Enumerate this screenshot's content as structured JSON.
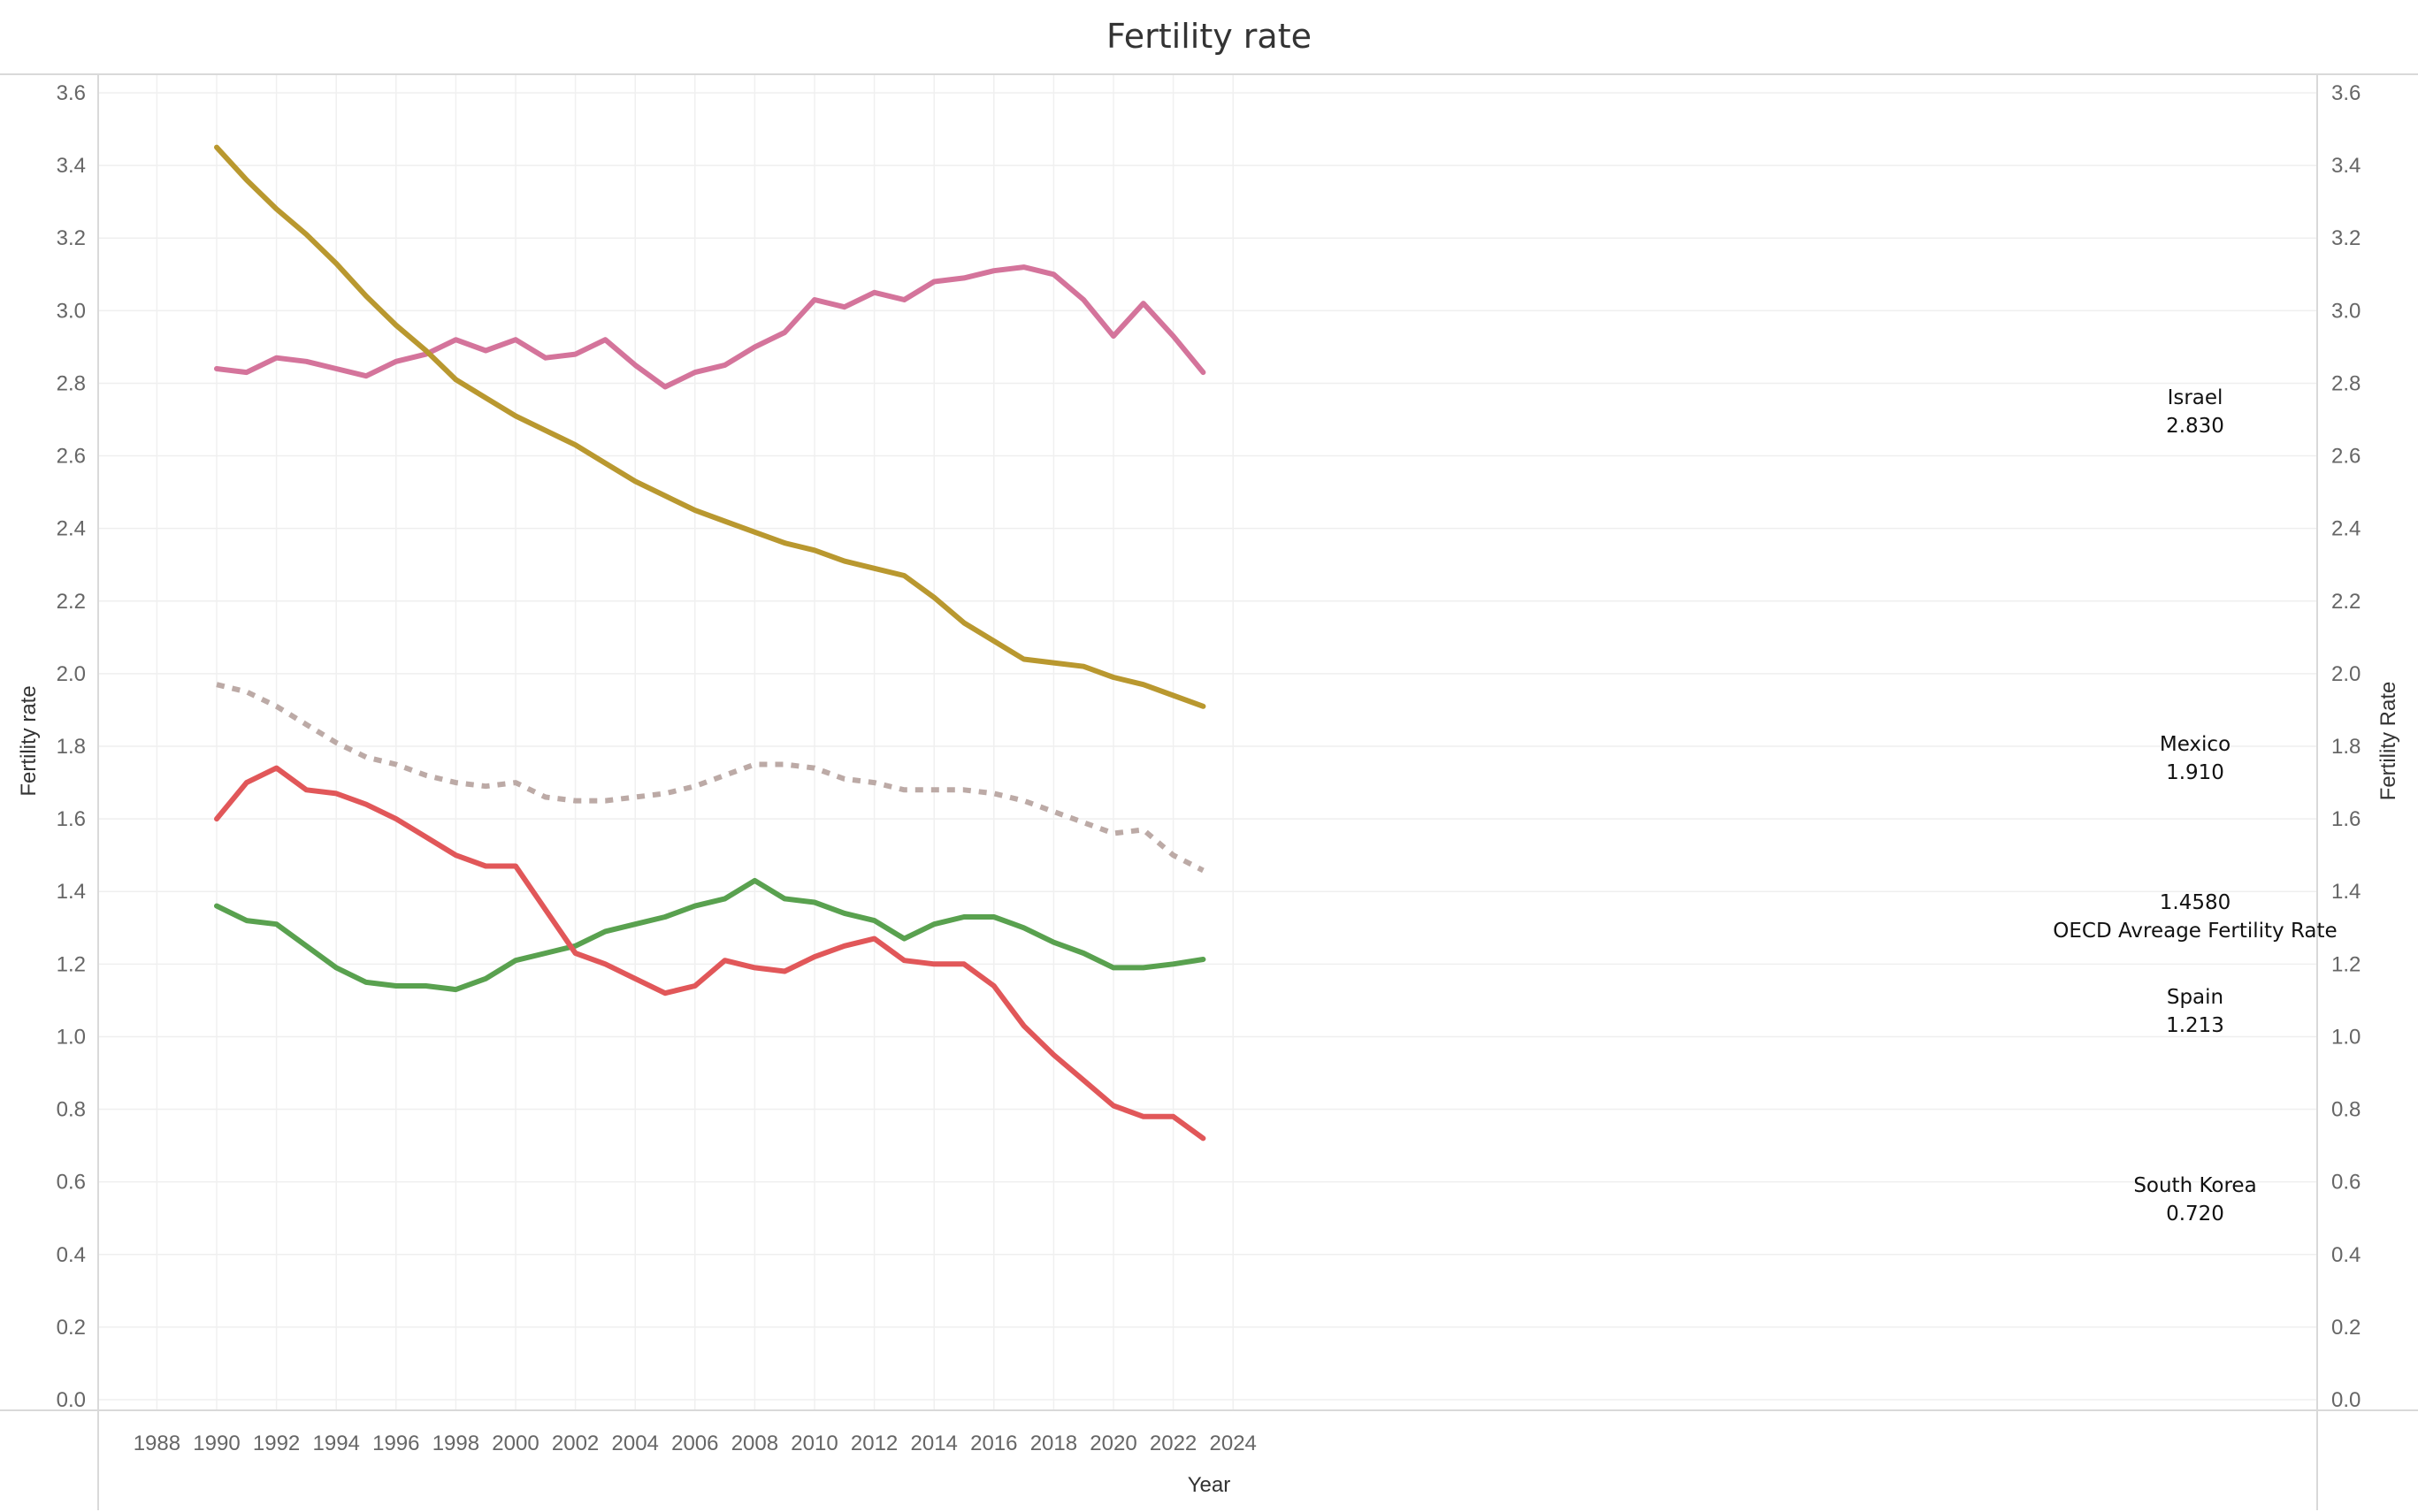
{
  "chart_data": {
    "type": "line",
    "title": "Fertility rate",
    "xlabel": "Year",
    "ylabel": "Fertility rate",
    "ylabel_right": "Fertility Rate",
    "xlim": [
      1987,
      2025
    ],
    "ylim": [
      0,
      3.65
    ],
    "x_ticks": [
      1988,
      1990,
      1992,
      1994,
      1996,
      1998,
      2000,
      2002,
      2004,
      2006,
      2008,
      2010,
      2012,
      2014,
      2016,
      2018,
      2020,
      2022,
      2024
    ],
    "y_ticks": [
      0.0,
      0.2,
      0.4,
      0.6,
      0.8,
      1.0,
      1.2,
      1.4,
      1.6,
      1.8,
      2.0,
      2.2,
      2.4,
      2.6,
      2.8,
      3.0,
      3.2,
      3.4,
      3.6
    ],
    "grid": true,
    "x": [
      1990,
      1991,
      1992,
      1993,
      1994,
      1995,
      1996,
      1997,
      1998,
      1999,
      2000,
      2001,
      2002,
      2003,
      2004,
      2005,
      2006,
      2007,
      2008,
      2009,
      2010,
      2011,
      2012,
      2013,
      2014,
      2015,
      2016,
      2017,
      2018,
      2019,
      2020,
      2021,
      2022,
      2023
    ],
    "series": [
      {
        "name": "Israel",
        "color": "#d4749b",
        "dashed": false,
        "values": [
          2.84,
          2.83,
          2.87,
          2.86,
          2.84,
          2.82,
          2.86,
          2.88,
          2.92,
          2.89,
          2.92,
          2.87,
          2.88,
          2.92,
          2.85,
          2.79,
          2.83,
          2.85,
          2.9,
          2.94,
          3.03,
          3.01,
          3.05,
          3.03,
          3.08,
          3.09,
          3.11,
          3.12,
          3.1,
          3.03,
          2.93,
          3.02,
          2.93,
          2.83
        ],
        "end_label_name": "Israel",
        "end_label_value": "2.830"
      },
      {
        "name": "Mexico",
        "color": "#b9982f",
        "dashed": false,
        "values": [
          3.45,
          3.36,
          3.28,
          3.21,
          3.13,
          3.04,
          2.96,
          2.89,
          2.81,
          2.76,
          2.71,
          2.67,
          2.63,
          2.58,
          2.53,
          2.49,
          2.45,
          2.42,
          2.39,
          2.36,
          2.34,
          2.31,
          2.29,
          2.27,
          2.21,
          2.14,
          2.09,
          2.04,
          2.03,
          2.02,
          1.99,
          1.97,
          1.94,
          1.91
        ],
        "end_label_name": "Mexico",
        "end_label_value": "1.910"
      },
      {
        "name": "OECD Avreage Fertility Rate",
        "color": "#bcaaa6",
        "dashed": true,
        "values": [
          1.97,
          1.95,
          1.91,
          1.86,
          1.81,
          1.77,
          1.75,
          1.72,
          1.7,
          1.69,
          1.7,
          1.66,
          1.65,
          1.65,
          1.66,
          1.67,
          1.69,
          1.72,
          1.75,
          1.75,
          1.74,
          1.71,
          1.7,
          1.68,
          1.68,
          1.68,
          1.67,
          1.65,
          1.62,
          1.59,
          1.56,
          1.57,
          1.5,
          1.458
        ],
        "end_label_name": "OECD Avreage Fertility Rate",
        "end_label_value": "1.4580"
      },
      {
        "name": "Spain",
        "color": "#59a14f",
        "dashed": false,
        "values": [
          1.36,
          1.32,
          1.31,
          1.25,
          1.19,
          1.15,
          1.14,
          1.14,
          1.13,
          1.16,
          1.21,
          1.23,
          1.25,
          1.29,
          1.31,
          1.33,
          1.36,
          1.38,
          1.43,
          1.38,
          1.37,
          1.34,
          1.32,
          1.27,
          1.31,
          1.33,
          1.33,
          1.3,
          1.26,
          1.23,
          1.19,
          1.19,
          1.2,
          1.213
        ],
        "end_label_name": "Spain",
        "end_label_value": "1.213"
      },
      {
        "name": "South Korea",
        "color": "#e15759",
        "dashed": false,
        "values": [
          1.6,
          1.7,
          1.74,
          1.68,
          1.67,
          1.64,
          1.6,
          1.55,
          1.5,
          1.47,
          1.47,
          1.35,
          1.23,
          1.2,
          1.16,
          1.12,
          1.14,
          1.21,
          1.19,
          1.18,
          1.22,
          1.25,
          1.27,
          1.21,
          1.2,
          1.2,
          1.14,
          1.03,
          0.95,
          0.88,
          0.81,
          0.78,
          0.78,
          0.72
        ],
        "end_label_name": "South Korea",
        "end_label_value": "0.720"
      }
    ]
  }
}
